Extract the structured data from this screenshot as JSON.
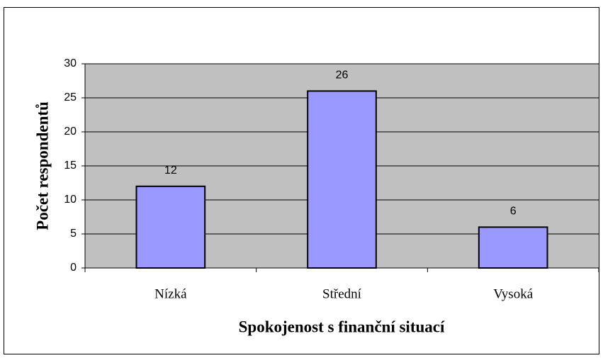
{
  "chart_data": {
    "type": "bar",
    "xlabel": "Spokojenost s finanční situací",
    "ylabel": "Počet respondentů",
    "categories": [
      "Nízká",
      "Střední",
      "Vysoká"
    ],
    "values": [
      12,
      26,
      6
    ],
    "color": "#9999ff",
    "plot_background": "#c0c0c0",
    "ylim": [
      0,
      30
    ],
    "yticks": [
      0,
      5,
      10,
      15,
      20,
      25,
      30
    ],
    "grid": true
  }
}
